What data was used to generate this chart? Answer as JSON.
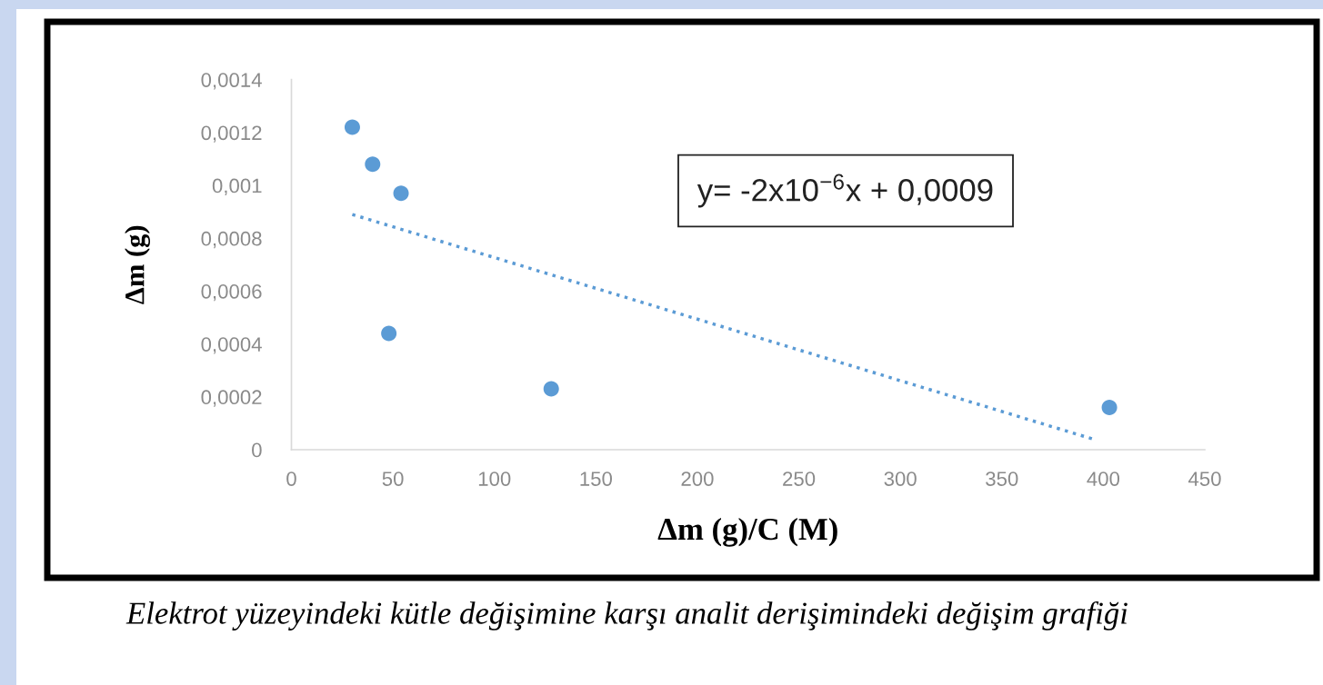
{
  "chart_data": {
    "type": "scatter",
    "xlabel": "Δm (g)/C (M)",
    "ylabel": "Δm (g)",
    "annotations": [
      "y= -2x10$^{−6}$x + 0,0009",
      "Elektrot yüzeyindeki kütle değişimine karşı analit derişimindeki değişim grafiği"
    ],
    "series": [
      {
        "color": "#5b9bd5",
        "marker": "circle",
        "x": [
          30,
          40,
          54,
          48,
          128,
          403
        ],
        "values": [
          0.00122,
          0.00108,
          0.00097,
          0.00044,
          0.00023,
          0.00016
        ]
      },
      {
        "type": "line",
        "color": "#5b9bd5",
        "marker": "none",
        "line_style": "dotted",
        "x": [
          30,
          395
        ],
        "values": [
          0.00089,
          4e-05
        ]
      }
    ],
    "xlim": [
      0,
      450
    ],
    "xticks": [
      0,
      50,
      100,
      150,
      200,
      250,
      300,
      350,
      400,
      450
    ],
    "ylim": [
      0,
      0.0014
    ],
    "yticks": [
      0,
      {
        "value": 0.0002,
        "label": "0,0002"
      },
      {
        "value": 0.0004,
        "label": "0,0004"
      },
      {
        "value": 0.0006,
        "label": "0,0006"
      },
      {
        "value": 0.0008,
        "label": "0,0008"
      },
      {
        "value": 0.001,
        "label": "0,001"
      },
      {
        "value": 0.0012,
        "label": "0,0012"
      },
      {
        "value": 0.0014,
        "label": "0,0014"
      }
    ],
    "grid": false,
    "legend": false
  }
}
